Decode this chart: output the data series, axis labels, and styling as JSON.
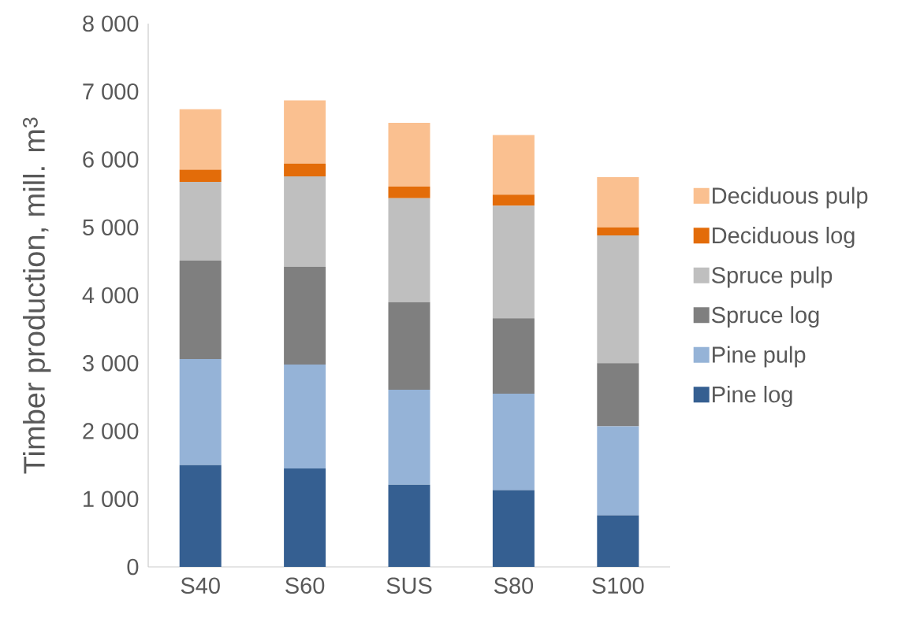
{
  "chart_data": {
    "type": "bar",
    "stacked": true,
    "ylabel": "Timber production, mill. m$^{3}$",
    "categories": [
      "S40",
      "S60",
      "SUS",
      "S80",
      "S100"
    ],
    "series": [
      {
        "name": "Pine log",
        "color": "#355f91",
        "values": [
          1500,
          1450,
          1210,
          1130,
          760
        ]
      },
      {
        "name": "Pine pulp",
        "color": "#95b3d7",
        "values": [
          1560,
          1530,
          1400,
          1420,
          1310
        ]
      },
      {
        "name": "Spruce log",
        "color": "#7f7f7f",
        "values": [
          1450,
          1440,
          1290,
          1110,
          930
        ]
      },
      {
        "name": "Spruce pulp",
        "color": "#bfbfbf",
        "values": [
          1160,
          1330,
          1530,
          1660,
          1880
        ]
      },
      {
        "name": "Deciduous log",
        "color": "#e36c09",
        "values": [
          180,
          190,
          170,
          160,
          120
        ]
      },
      {
        "name": "Deciduous pulp",
        "color": "#fac090",
        "values": [
          890,
          930,
          940,
          880,
          740
        ]
      }
    ],
    "ylim": [
      0,
      8000
    ],
    "yticks": [
      {
        "value": 0,
        "label": "0"
      },
      {
        "value": 1000,
        "label": "1 000"
      },
      {
        "value": 2000,
        "label": "2 000"
      },
      {
        "value": 3000,
        "label": "3 000"
      },
      {
        "value": 4000,
        "label": "4 000"
      },
      {
        "value": 5000,
        "label": "5 000"
      },
      {
        "value": 6000,
        "label": "6 000"
      },
      {
        "value": 7000,
        "label": "7 000"
      },
      {
        "value": 8000,
        "label": "8 000"
      }
    ],
    "legend": "right",
    "grid": false
  }
}
